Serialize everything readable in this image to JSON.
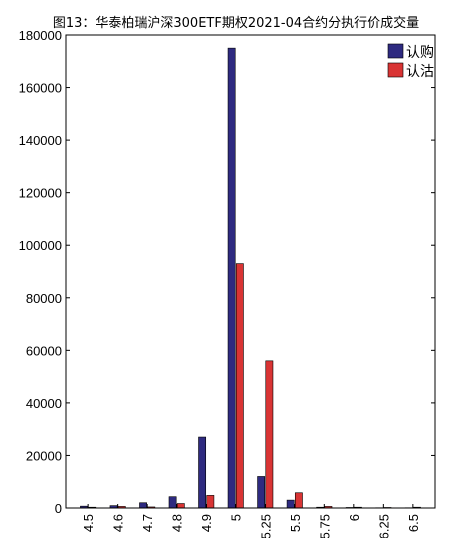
{
  "chart_data": {
    "type": "bar",
    "title": "图13：华泰柏瑞沪深300ETF期权2021-04合约分执行价成交量",
    "xlabel": "",
    "ylabel": "",
    "ylim": [
      0,
      180000
    ],
    "yticks": [
      0,
      20000,
      40000,
      60000,
      80000,
      100000,
      120000,
      140000,
      160000,
      180000
    ],
    "grid": false,
    "legend_position": "top-right",
    "categories": [
      "4.5",
      "4.6",
      "4.7",
      "4.8",
      "4.9",
      "5",
      "5.25",
      "5.5",
      "5.75",
      "6",
      "6.25",
      "6.5"
    ],
    "series": [
      {
        "name": "认购",
        "color": "#2E2A80",
        "values": [
          700,
          900,
          2000,
          4300,
          27000,
          175000,
          12000,
          3000,
          300,
          200,
          100,
          100
        ]
      },
      {
        "name": "认沽",
        "color": "#D93434",
        "values": [
          300,
          600,
          400,
          1700,
          4800,
          93000,
          56000,
          5800,
          600,
          300,
          200,
          300
        ]
      }
    ]
  }
}
